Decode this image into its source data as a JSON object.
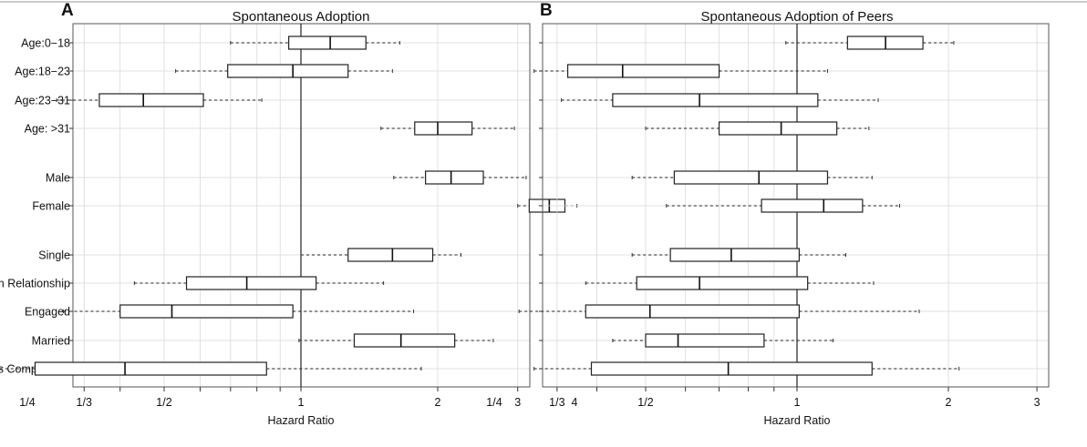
{
  "chart_data": {
    "type": "boxplot",
    "x_scale": "log2",
    "xlim": [
      0.2,
      5
    ],
    "reference_line": 1,
    "x_ticks": [
      {
        "value": 0.25,
        "label": "1/4"
      },
      {
        "value": 0.3333,
        "label": "1/3"
      },
      {
        "value": 0.5,
        "label": "1/2"
      },
      {
        "value": 1,
        "label": "1"
      },
      {
        "value": 2,
        "label": "2"
      },
      {
        "value": 3,
        "label": "3"
      },
      {
        "value": 4,
        "label": "4"
      }
    ],
    "minor_ticks": [
      0.2,
      0.3,
      0.4,
      0.6,
      0.7,
      0.8,
      0.9,
      5
    ],
    "xlabel": "Hazard Ratio",
    "categories": [
      "Age:0−18",
      "Age:18−23",
      "Age:23−31",
      "Age: >31",
      "Male",
      "Female",
      "Single",
      "In Relationship",
      "Engaged",
      "Married",
      "It's Complicated"
    ],
    "panels": [
      {
        "letter": "A",
        "title": "Spontaneous Adoption",
        "boxes": [
          {
            "low": 0.7,
            "q1": 0.94,
            "median": 1.16,
            "q3": 1.39,
            "high": 1.65
          },
          {
            "low": 0.53,
            "q1": 0.69,
            "median": 0.96,
            "q3": 1.27,
            "high": 1.59
          },
          {
            "low": 0.29,
            "q1": 0.36,
            "median": 0.45,
            "q3": 0.61,
            "high": 0.82
          },
          {
            "low": 1.5,
            "q1": 1.78,
            "median": 2.0,
            "q3": 2.38,
            "high": 2.95
          },
          {
            "low": 1.6,
            "q1": 1.88,
            "median": 2.14,
            "q3": 2.52,
            "high": 3.13
          },
          {
            "low": 3.0,
            "q1": 3.18,
            "median": 3.52,
            "q3": 3.81,
            "high": 4.05
          },
          {
            "low": 1.0,
            "q1": 1.27,
            "median": 1.59,
            "q3": 1.95,
            "high": 2.25
          },
          {
            "low": 0.43,
            "q1": 0.56,
            "median": 0.76,
            "q3": 1.08,
            "high": 1.52
          },
          {
            "low": 0.3,
            "q1": 0.4,
            "median": 0.52,
            "q3": 0.96,
            "high": 1.77
          },
          {
            "low": 0.99,
            "q1": 1.31,
            "median": 1.66,
            "q3": 2.18,
            "high": 2.65
          },
          {
            "low": 0.2,
            "q1": 0.26,
            "median": 0.41,
            "q3": 0.84,
            "high": 1.84
          }
        ]
      },
      {
        "letter": "B",
        "title": "Spontaneous Adoption of Peers",
        "boxes": [
          {
            "low": 0.95,
            "q1": 1.26,
            "median": 1.5,
            "q3": 1.78,
            "high": 2.05
          },
          {
            "low": 0.3,
            "q1": 0.35,
            "median": 0.45,
            "q3": 0.7,
            "high": 1.15
          },
          {
            "low": 0.34,
            "q1": 0.43,
            "median": 0.64,
            "q3": 1.1,
            "high": 1.45
          },
          {
            "low": 0.5,
            "q1": 0.7,
            "median": 0.93,
            "q3": 1.2,
            "high": 1.39
          },
          {
            "low": 0.47,
            "q1": 0.57,
            "median": 0.84,
            "q3": 1.15,
            "high": 1.41
          },
          {
            "low": 0.55,
            "q1": 0.85,
            "median": 1.13,
            "q3": 1.35,
            "high": 1.6
          },
          {
            "low": 0.47,
            "q1": 0.56,
            "median": 0.74,
            "q3": 1.01,
            "high": 1.25
          },
          {
            "low": 0.38,
            "q1": 0.48,
            "median": 0.64,
            "q3": 1.05,
            "high": 1.42
          },
          {
            "low": 0.28,
            "q1": 0.38,
            "median": 0.51,
            "q3": 1.01,
            "high": 1.75
          },
          {
            "low": 0.43,
            "q1": 0.5,
            "median": 0.58,
            "q3": 0.86,
            "high": 1.18
          },
          {
            "low": 0.3,
            "q1": 0.39,
            "median": 0.73,
            "q3": 1.41,
            "high": 2.1
          }
        ]
      }
    ]
  }
}
